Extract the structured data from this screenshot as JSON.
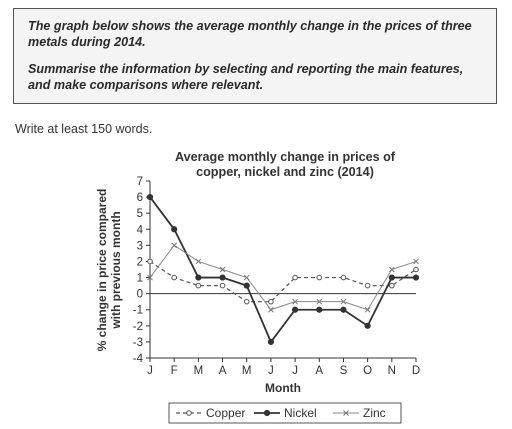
{
  "task": {
    "line1": "The graph below shows the average monthly change in the prices of three metals during 2014.",
    "line2": "Summarise the information by selecting and reporting the main features, and make comparisons where relevant."
  },
  "instruction": "Write at least 150 words.",
  "chart_data": {
    "type": "line",
    "title": [
      "Average monthly change in prices of",
      "copper, nickel and zinc (2014)"
    ],
    "xlabel": "Month",
    "ylabel": [
      "% change in price compared",
      "with previous month"
    ],
    "categories": [
      "J",
      "F",
      "M",
      "A",
      "M",
      "J",
      "J",
      "A",
      "S",
      "O",
      "N",
      "D"
    ],
    "ylim": [
      -4,
      7
    ],
    "yticks": [
      -4,
      -3,
      -2,
      -1,
      0,
      1,
      2,
      3,
      4,
      5,
      6,
      7
    ],
    "grid": false,
    "legend_position": "bottom",
    "series": [
      {
        "name": "Copper",
        "style": "dashed-circle",
        "values": [
          2,
          1,
          0.5,
          0.5,
          -0.5,
          -0.5,
          1,
          1,
          1,
          0.5,
          0.5,
          1.5
        ]
      },
      {
        "name": "Nickel",
        "style": "solid-dot",
        "values": [
          6,
          4,
          1,
          1,
          0.5,
          -3,
          -1,
          -1,
          -1,
          -2,
          1,
          1
        ]
      },
      {
        "name": "Zinc",
        "style": "thin-cross",
        "values": [
          1,
          3,
          2,
          1.5,
          1,
          -1,
          -0.5,
          -0.5,
          -0.5,
          -1,
          1.5,
          2
        ]
      }
    ]
  }
}
